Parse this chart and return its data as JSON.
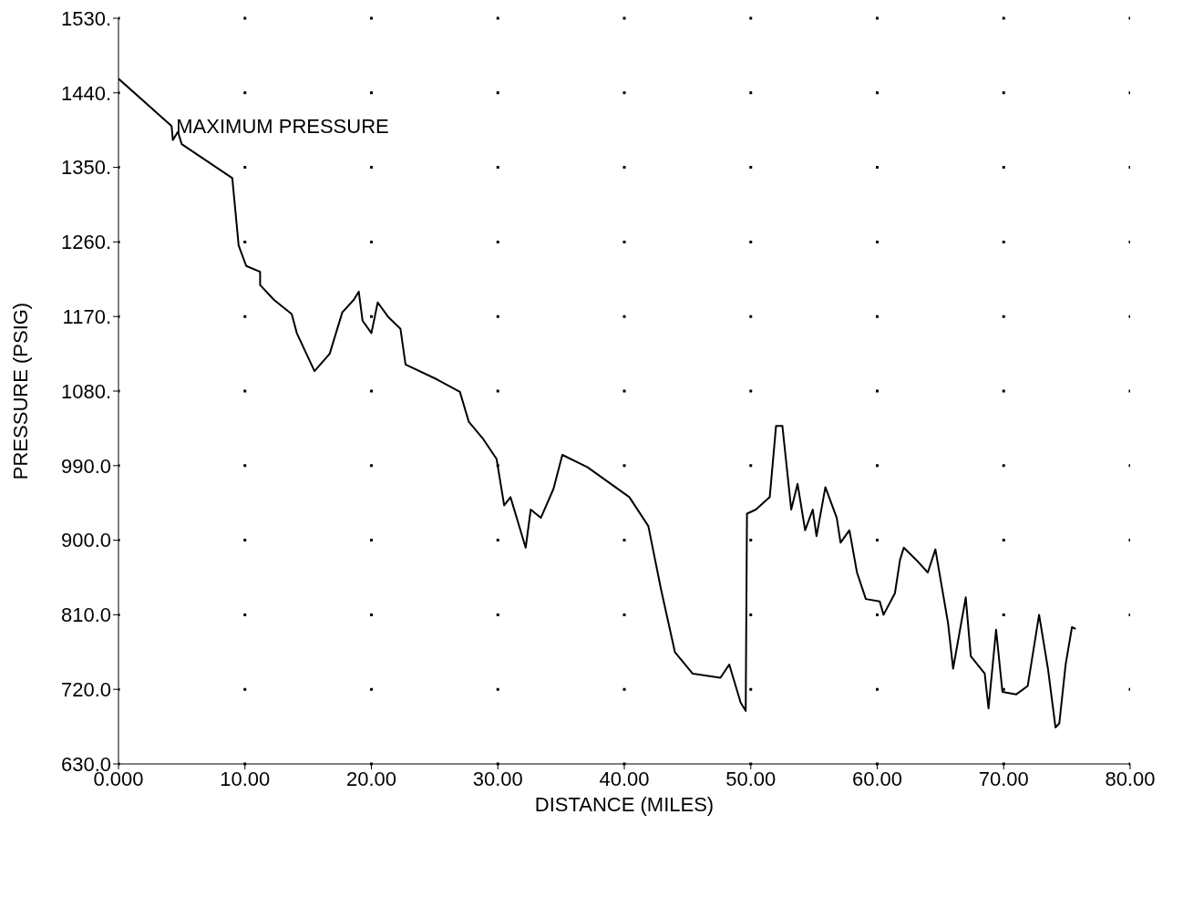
{
  "chart_data": {
    "type": "line",
    "xlabel": "DISTANCE  (MILES)",
    "ylabel": "PRESSURE  (PSIG)",
    "annotations": [
      {
        "text": "MAXIMUM PRESSURE",
        "x": 4.2,
        "y": 1400
      }
    ],
    "x": [
      0,
      4.2,
      4.3,
      4.7,
      5.0,
      9.0,
      9.5,
      10.1,
      11.2,
      11.2,
      12.3,
      13.7,
      14.1,
      15.5,
      16.7,
      17.7,
      18.6,
      19.0,
      19.3,
      20.0,
      20.5,
      21.3,
      22.3,
      22.7,
      25.2,
      27.0,
      27.7,
      28.8,
      29.9,
      30.5,
      31.0,
      32.2,
      32.6,
      33.4,
      34.4,
      35.1,
      37.1,
      40.4,
      41.9,
      42.9,
      44.0,
      45.4,
      47.6,
      48.3,
      49.2,
      49.6,
      49.7,
      50.4,
      51.5,
      52.0,
      52.5,
      53.2,
      53.7,
      54.3,
      54.9,
      55.2,
      55.9,
      56.8,
      57.1,
      57.8,
      58.4,
      59.1,
      60.2,
      60.5,
      61.4,
      61.8,
      62.1,
      63.1,
      64.0,
      64.6,
      65.6,
      66.0,
      67.0,
      67.4,
      68.5,
      68.8,
      69.4,
      69.9,
      71.0,
      71.9,
      72.8,
      73.5,
      74.1,
      74.4,
      74.9,
      75.4,
      75.7
    ],
    "values": [
      1457,
      1400,
      1383,
      1393,
      1378,
      1337,
      1256,
      1231,
      1224,
      1208,
      1190,
      1173,
      1150,
      1104,
      1125,
      1175,
      1190,
      1200,
      1165,
      1150,
      1187,
      1170,
      1155,
      1112,
      1094,
      1079,
      1043,
      1023,
      998,
      942,
      952,
      891,
      937,
      927,
      962,
      1003,
      988,
      952,
      917,
      841,
      765,
      739,
      734,
      750,
      704,
      694,
      932,
      937,
      952,
      1038,
      1038,
      937,
      968,
      912,
      937,
      905,
      964,
      927,
      897,
      912,
      861,
      829,
      826,
      810,
      836,
      876,
      891,
      876,
      861,
      889,
      800,
      745,
      831,
      760,
      739,
      697,
      792,
      717,
      714,
      724,
      810,
      745,
      674,
      679,
      750,
      795,
      793
    ],
    "color": "#000000",
    "xlim": [
      0,
      80
    ],
    "xticks": [
      {
        "value": 0,
        "label": "0.000"
      },
      {
        "value": 10,
        "label": "10.00"
      },
      {
        "value": 20,
        "label": "20.00"
      },
      {
        "value": 30,
        "label": "30.00"
      },
      {
        "value": 40,
        "label": "40.00"
      },
      {
        "value": 50,
        "label": "50.00"
      },
      {
        "value": 60,
        "label": "60.00"
      },
      {
        "value": 70,
        "label": "70.00"
      },
      {
        "value": 80,
        "label": "80.00"
      }
    ],
    "ylim": [
      630,
      1530
    ],
    "yticks": [
      {
        "value": 630,
        "label": "630.0"
      },
      {
        "value": 720,
        "label": "720.0"
      },
      {
        "value": 810,
        "label": "810.0"
      },
      {
        "value": 900,
        "label": "900.0"
      },
      {
        "value": 990,
        "label": "990.0"
      },
      {
        "value": 1080,
        "label": "1080."
      },
      {
        "value": 1170,
        "label": "1170."
      },
      {
        "value": 1260,
        "label": "1260."
      },
      {
        "value": 1350,
        "label": "1350."
      },
      {
        "value": 1440,
        "label": "1440."
      },
      {
        "value": 1530,
        "label": "1530."
      }
    ],
    "grid": true
  }
}
